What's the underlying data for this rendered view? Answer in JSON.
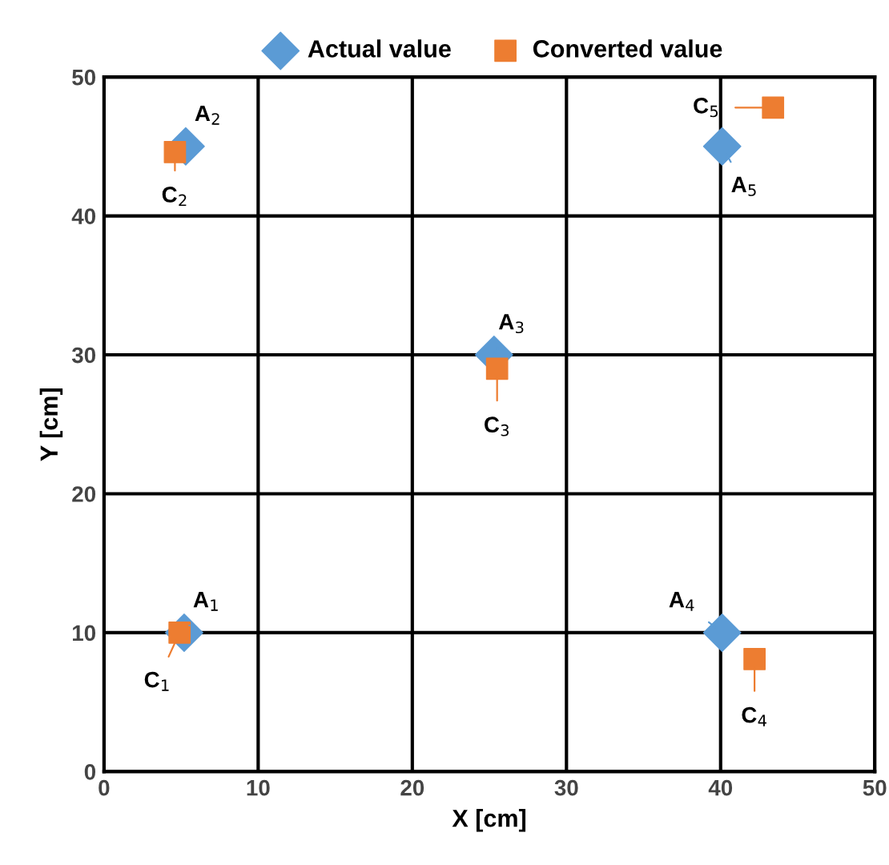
{
  "chart_data": {
    "type": "scatter",
    "xlabel": "X [cm]",
    "ylabel": "Y [cm]",
    "series": [
      {
        "name": "Actual value",
        "color": "#5b9bd5",
        "marker": "diamond",
        "x": [
          5.2,
          5.3,
          25.3,
          40.1,
          40.1
        ],
        "values": [
          10,
          45,
          30,
          10,
          45
        ]
      },
      {
        "name": "Converted value",
        "color": "#ed7d31",
        "marker": "square",
        "x": [
          4.9,
          4.6,
          25.5,
          42.2,
          43.4
        ],
        "values": [
          10,
          44.6,
          29.0,
          8.1,
          47.8
        ]
      }
    ],
    "annotations": [
      {
        "text": "A$_{1}$",
        "x": 5.2,
        "y": 10
      },
      {
        "text": "A$_{2}$",
        "x": 5.3,
        "y": 45
      },
      {
        "text": "A$_{3}$",
        "x": 25.3,
        "y": 30
      },
      {
        "text": "A$_{4}$",
        "x": 40.1,
        "y": 10
      },
      {
        "text": "A$_{5}$",
        "x": 40.1,
        "y": 45
      },
      {
        "text": "C$_{1}$",
        "x": 4.9,
        "y": 10
      },
      {
        "text": "C$_{2}$",
        "x": 4.6,
        "y": 44.6
      },
      {
        "text": "C$_{3}$",
        "x": 25.5,
        "y": 29.0
      },
      {
        "text": "C$_{4}$",
        "x": 42.2,
        "y": 8.1
      },
      {
        "text": "C$_{5}$",
        "x": 43.4,
        "y": 47.8
      }
    ],
    "xlim": [
      0,
      50
    ],
    "ylim": [
      0,
      50
    ],
    "xticks": [
      0,
      10,
      20,
      30,
      40,
      50
    ],
    "yticks": [
      0,
      10,
      20,
      30,
      40,
      50
    ],
    "grid": true,
    "legend": "top"
  }
}
